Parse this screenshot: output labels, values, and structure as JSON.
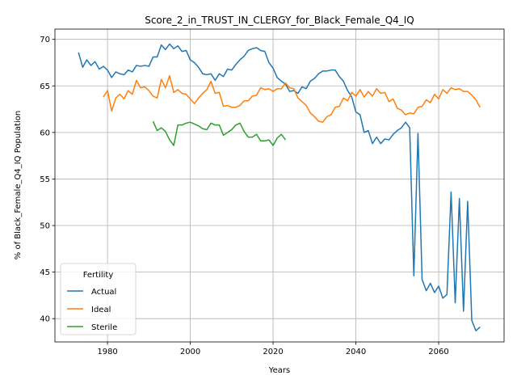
{
  "chart_data": {
    "type": "line",
    "title": "Score_2_in_TRUST_IN_CLERGY_for_Black_Female_Q4_IQ",
    "xlabel": "Years",
    "ylabel": "% of Black_Female_Q4_IQ Population",
    "xlim": [
      1967.3,
      2075.8
    ],
    "ylim": [
      37.5,
      71.1
    ],
    "xticks": [
      1980,
      2000,
      2020,
      2040,
      2060
    ],
    "yticks": [
      40,
      45,
      50,
      55,
      60,
      65,
      70
    ],
    "grid": true,
    "legend": {
      "title": "Fertility",
      "position": "lower-left"
    },
    "series": [
      {
        "name": "Actual",
        "color": "#1f77b4",
        "x": [
          1973,
          1974,
          1975,
          1976,
          1977,
          1978,
          1979,
          1980,
          1981,
          1982,
          1983,
          1984,
          1985,
          1986,
          1987,
          1988,
          1989,
          1990,
          1991,
          1992,
          1993,
          1994,
          1995,
          1996,
          1997,
          1998,
          1999,
          2000,
          2001,
          2002,
          2003,
          2004,
          2005,
          2006,
          2007,
          2008,
          2009,
          2010,
          2011,
          2012,
          2013,
          2014,
          2015,
          2016,
          2017,
          2018,
          2019,
          2020,
          2021,
          2022,
          2023,
          2024,
          2025,
          2026,
          2027,
          2028,
          2029,
          2030,
          2031,
          2032,
          2033,
          2034,
          2035,
          2036,
          2037,
          2038,
          2039,
          2040,
          2041,
          2042,
          2043,
          2044,
          2045,
          2046,
          2047,
          2048,
          2049,
          2050,
          2051,
          2052,
          2053,
          2054,
          2055,
          2056,
          2057,
          2058,
          2059,
          2060,
          2061,
          2062,
          2063,
          2064,
          2065,
          2066,
          2067,
          2068,
          2069,
          2070
        ],
        "y": [
          68.6,
          67.0,
          67.8,
          67.2,
          67.6,
          66.8,
          67.1,
          66.7,
          65.9,
          66.5,
          66.3,
          66.2,
          66.7,
          66.5,
          67.2,
          67.1,
          67.2,
          67.1,
          68.1,
          68.1,
          69.4,
          68.9,
          69.5,
          69.0,
          69.3,
          68.7,
          68.8,
          67.8,
          67.5,
          67.0,
          66.3,
          66.2,
          66.3,
          65.6,
          66.3,
          66.0,
          66.8,
          66.7,
          67.3,
          67.8,
          68.2,
          68.8,
          69.0,
          69.1,
          68.8,
          68.7,
          67.5,
          66.9,
          65.9,
          65.5,
          65.2,
          64.4,
          64.5,
          64.2,
          64.9,
          64.7,
          65.5,
          65.8,
          66.3,
          66.6,
          66.6,
          66.7,
          66.7,
          66.0,
          65.5,
          64.5,
          63.8,
          62.2,
          61.9,
          60.0,
          60.2,
          58.8,
          59.5,
          58.8,
          59.3,
          59.2,
          59.8,
          60.2,
          60.5,
          61.1,
          60.5,
          44.6,
          59.9,
          44.2,
          43.0,
          43.8,
          42.8,
          43.5,
          42.2,
          42.6,
          53.6,
          41.7,
          52.9,
          40.8,
          52.6,
          39.8,
          38.7,
          39.1
        ]
      },
      {
        "name": "Ideal",
        "color": "#ff7f0e",
        "x": [
          1979,
          1980,
          1981,
          1982,
          1983,
          1984,
          1985,
          1986,
          1987,
          1988,
          1989,
          1990,
          1991,
          1992,
          1993,
          1994,
          1995,
          1996,
          1997,
          1998,
          1999,
          2000,
          2001,
          2002,
          2003,
          2004,
          2005,
          2006,
          2007,
          2008,
          2009,
          2010,
          2011,
          2012,
          2013,
          2014,
          2015,
          2016,
          2017,
          2018,
          2019,
          2020,
          2021,
          2022,
          2023,
          2024,
          2025,
          2026,
          2027,
          2028,
          2029,
          2030,
          2031,
          2032,
          2033,
          2034,
          2035,
          2036,
          2037,
          2038,
          2039,
          2040,
          2041,
          2042,
          2043,
          2044,
          2045,
          2046,
          2047,
          2048,
          2049,
          2050,
          2051,
          2052,
          2053,
          2054,
          2055,
          2056,
          2057,
          2058,
          2059,
          2060,
          2061,
          2062,
          2063,
          2064,
          2065,
          2066,
          2067,
          2068,
          2069,
          2070
        ],
        "y": [
          63.8,
          64.5,
          62.3,
          63.7,
          64.1,
          63.6,
          64.5,
          64.1,
          65.6,
          64.8,
          64.9,
          64.5,
          63.9,
          63.7,
          65.7,
          64.8,
          66.1,
          64.3,
          64.6,
          64.2,
          64.1,
          63.6,
          63.1,
          63.7,
          64.2,
          64.6,
          65.5,
          64.2,
          64.3,
          62.8,
          62.9,
          62.7,
          62.7,
          62.9,
          63.4,
          63.4,
          63.9,
          64.0,
          64.8,
          64.6,
          64.7,
          64.4,
          64.7,
          64.7,
          65.3,
          64.8,
          64.7,
          63.7,
          63.3,
          62.9,
          62.1,
          61.7,
          61.2,
          61.1,
          61.7,
          61.9,
          62.7,
          62.8,
          63.7,
          63.4,
          64.3,
          63.9,
          64.6,
          63.8,
          64.4,
          63.9,
          64.7,
          64.2,
          64.3,
          63.3,
          63.6,
          62.6,
          62.4,
          61.9,
          62.1,
          62.0,
          62.7,
          62.8,
          63.5,
          63.2,
          64.1,
          63.6,
          64.6,
          64.2,
          64.8,
          64.6,
          64.7,
          64.4,
          64.4,
          64.0,
          63.5,
          62.7
        ]
      },
      {
        "name": "Sterile",
        "color": "#2ca02c",
        "x": [
          1991,
          1992,
          1993,
          1994,
          1995,
          1996,
          1997,
          1998,
          1999,
          2000,
          2001,
          2002,
          2003,
          2004,
          2005,
          2006,
          2007,
          2008,
          2009,
          2010,
          2011,
          2012,
          2013,
          2014,
          2015,
          2016,
          2017,
          2018,
          2019,
          2020,
          2021,
          2022,
          2023
        ],
        "y": [
          61.2,
          60.2,
          60.5,
          60.1,
          59.2,
          58.6,
          60.8,
          60.8,
          61.0,
          61.1,
          60.9,
          60.7,
          60.4,
          60.3,
          61.0,
          60.8,
          60.8,
          59.7,
          60.0,
          60.3,
          60.8,
          61.0,
          60.1,
          59.5,
          59.5,
          59.8,
          59.1,
          59.1,
          59.2,
          58.6,
          59.4,
          59.8,
          59.2
        ]
      }
    ]
  }
}
